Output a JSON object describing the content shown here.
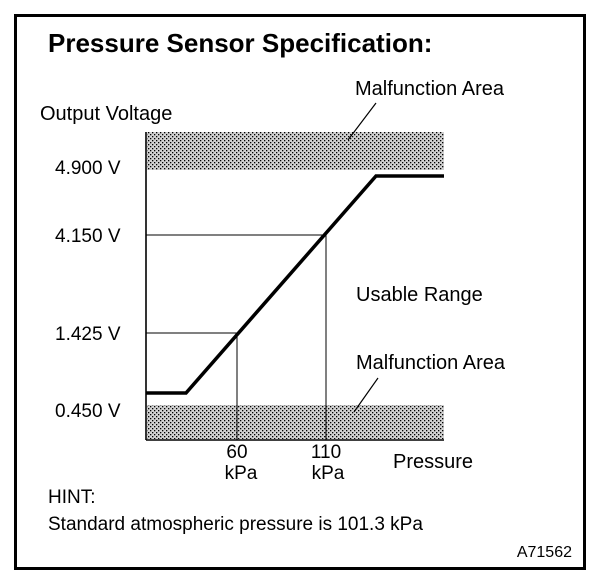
{
  "title": "Pressure Sensor Specification:",
  "y_axis_label": "Output Voltage",
  "x_axis_label": "Pressure",
  "region_labels": {
    "malfunction_upper": "Malfunction Area",
    "usable": "Usable Range",
    "malfunction_lower": "Malfunction Area"
  },
  "y_ticks": [
    "4.900 V",
    "4.150 V",
    "1.425 V",
    "0.450 V"
  ],
  "x_ticks": [
    {
      "value": "60",
      "unit": "kPa"
    },
    {
      "value": "110",
      "unit": "kPa"
    }
  ],
  "hint": {
    "heading": "HINT:",
    "text": "Standard atmospheric pressure is 101.3 kPa"
  },
  "figure_id": "A71562",
  "chart_data": {
    "type": "line",
    "x_unit": "kPa",
    "y_unit": "V",
    "points": [
      {
        "x": 60,
        "y": 1.425
      },
      {
        "x": 110,
        "y": 4.15
      }
    ],
    "shaded_regions": [
      "above 4.900 V",
      "below 0.450 V"
    ]
  },
  "colors": {
    "line": "#000000",
    "background": "#ffffff"
  }
}
